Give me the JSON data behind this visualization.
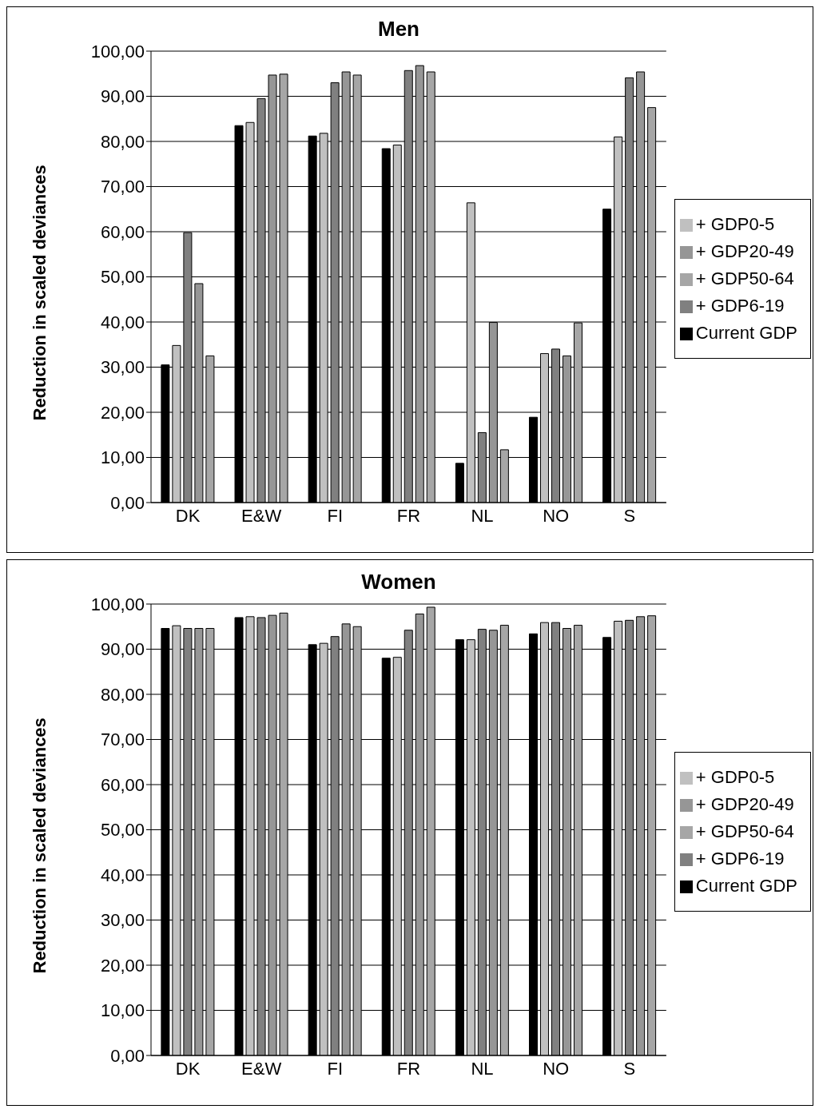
{
  "chart_data": [
    {
      "type": "bar",
      "title": "Men",
      "ylabel": "Reduction in scaled deviances",
      "categories": [
        "DK",
        "E&W",
        "FI",
        "FR",
        "NL",
        "NO",
        "S"
      ],
      "series": [
        {
          "name": "Current GDP",
          "color": "#000000",
          "values": [
            30.5,
            83.5,
            81.2,
            78.4,
            8.7,
            18.9,
            65.0
          ]
        },
        {
          "name": "+ GDP0-5",
          "color": "#c0c0c0",
          "values": [
            34.8,
            84.2,
            81.8,
            79.2,
            66.4,
            33.0,
            81.0
          ]
        },
        {
          "name": "+ GDP6-19",
          "color": "#808080",
          "values": [
            59.8,
            89.5,
            93.0,
            95.7,
            15.5,
            34.0,
            94.1
          ]
        },
        {
          "name": "+ GDP20-49",
          "color": "#969696",
          "values": [
            48.5,
            94.7,
            95.4,
            96.8,
            39.9,
            32.5,
            95.4
          ]
        },
        {
          "name": "+ GDP50-64",
          "color": "#a6a6a6",
          "values": [
            32.5,
            94.9,
            94.7,
            95.4,
            11.7,
            39.8,
            87.5
          ]
        }
      ],
      "ylim": [
        0,
        100
      ],
      "yticks": [
        {
          "value": 0,
          "label": "0,00"
        },
        {
          "value": 10,
          "label": "10,00"
        },
        {
          "value": 20,
          "label": "20,00"
        },
        {
          "value": 30,
          "label": "30,00"
        },
        {
          "value": 40,
          "label": "40,00"
        },
        {
          "value": 50,
          "label": "50,00"
        },
        {
          "value": 60,
          "label": "60,00"
        },
        {
          "value": 70,
          "label": "70,00"
        },
        {
          "value": 80,
          "label": "80,00"
        },
        {
          "value": 90,
          "label": "90,00"
        },
        {
          "value": 100,
          "label": "100,00"
        }
      ],
      "grid": "y",
      "legend": "right"
    },
    {
      "type": "bar",
      "title": "Women",
      "ylabel": "Reduction in scaled deviances",
      "categories": [
        "DK",
        "E&W",
        "FI",
        "FR",
        "NL",
        "NO",
        "S"
      ],
      "series": [
        {
          "name": "Current GDP",
          "color": "#000000",
          "values": [
            94.6,
            97.0,
            91.0,
            88.0,
            92.1,
            93.4,
            92.6
          ]
        },
        {
          "name": "+ GDP0-5",
          "color": "#c0c0c0",
          "values": [
            95.2,
            97.2,
            91.3,
            88.2,
            92.1,
            95.9,
            96.2
          ]
        },
        {
          "name": "+ GDP6-19",
          "color": "#808080",
          "values": [
            94.6,
            97.0,
            92.8,
            94.2,
            94.4,
            95.9,
            96.4
          ]
        },
        {
          "name": "+ GDP20-49",
          "color": "#969696",
          "values": [
            94.6,
            97.5,
            95.6,
            97.8,
            94.2,
            94.6,
            97.2
          ]
        },
        {
          "name": "+ GDP50-64",
          "color": "#a6a6a6",
          "values": [
            94.6,
            98.0,
            95.0,
            99.3,
            95.3,
            95.3,
            97.4
          ]
        }
      ],
      "ylim": [
        0,
        100
      ],
      "yticks": [
        {
          "value": 0,
          "label": "0,00"
        },
        {
          "value": 10,
          "label": "10,00"
        },
        {
          "value": 20,
          "label": "20,00"
        },
        {
          "value": 30,
          "label": "30,00"
        },
        {
          "value": 40,
          "label": "40,00"
        },
        {
          "value": 50,
          "label": "50,00"
        },
        {
          "value": 60,
          "label": "60,00"
        },
        {
          "value": 70,
          "label": "70,00"
        },
        {
          "value": 80,
          "label": "80,00"
        },
        {
          "value": 90,
          "label": "90,00"
        },
        {
          "value": 100,
          "label": "100,00"
        }
      ],
      "grid": "y",
      "legend": "right"
    }
  ]
}
